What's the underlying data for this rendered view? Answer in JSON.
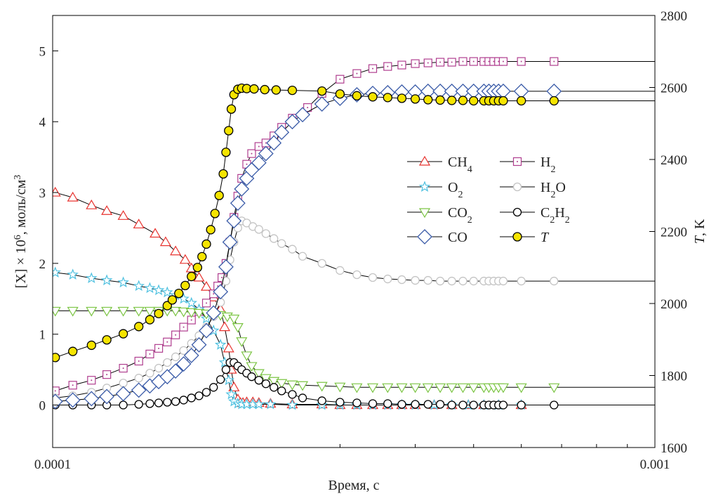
{
  "chart_data": {
    "type": "line",
    "title": "",
    "xlabel": "Время, с",
    "ylabel_left": "[X] × 10⁶, моль/см³",
    "ylabel_right": "T, K",
    "x_scale": "log",
    "xlim": [
      0.0001,
      0.001
    ],
    "x_ticks": [
      0.0001,
      0.001
    ],
    "x_tick_labels": [
      "0.0001",
      "0.001"
    ],
    "ylim_left": [
      -0.6,
      5.5
    ],
    "y_ticks_left": [
      0,
      1,
      2,
      3,
      4,
      5
    ],
    "ylim_right": [
      1600,
      2800
    ],
    "y_ticks_right": [
      1600,
      1800,
      2000,
      2200,
      2400,
      2600,
      2800
    ],
    "grid": false,
    "legend_position": "center-right",
    "series": [
      {
        "name": "CH4",
        "axis": "left",
        "color": "#e8332f",
        "marker": "triangle",
        "x": [
          0.000101,
          0.000108,
          0.000116,
          0.000123,
          0.000131,
          0.000139,
          0.000148,
          0.000154,
          0.00016,
          0.000166,
          0.00017,
          0.000175,
          0.00018,
          0.000185,
          0.00019,
          0.000193,
          0.000196,
          0.000198,
          0.0002,
          0.000203,
          0.000205,
          0.000207,
          0.00021,
          0.000215,
          0.00022,
          0.00023,
          0.00025,
          0.00028,
          0.0003,
          0.00032,
          0.00034,
          0.00036,
          0.00038,
          0.0004,
          0.00043,
          0.00046,
          0.00049,
          0.00052,
          0.00055,
          0.0006
        ],
        "y": [
          3.0,
          2.93,
          2.82,
          2.74,
          2.67,
          2.55,
          2.42,
          2.3,
          2.17,
          2.05,
          1.93,
          1.8,
          1.67,
          1.52,
          1.35,
          1.1,
          0.8,
          0.5,
          0.25,
          0.08,
          0.03,
          0.03,
          0.04,
          0.04,
          0.03,
          0.02,
          0.01,
          0.01,
          0.0,
          0.0,
          0.0,
          0.0,
          0.0,
          0.0,
          0.0,
          0.0,
          0.0,
          0.0,
          0.0,
          0.0
        ]
      },
      {
        "name": "H2",
        "axis": "left",
        "color": "#b03e8f",
        "marker": "square-dot",
        "x": [
          0.000101,
          0.000108,
          0.000116,
          0.000123,
          0.000131,
          0.000139,
          0.000145,
          0.00015,
          0.000155,
          0.00016,
          0.000165,
          0.00017,
          0.000175,
          0.00018,
          0.000185,
          0.000188,
          0.000191,
          0.000194,
          0.000197,
          0.0002,
          0.000203,
          0.000206,
          0.00021,
          0.000214,
          0.00022,
          0.000226,
          0.000233,
          0.00024,
          0.00025,
          0.000265,
          0.00028,
          0.0003,
          0.00032,
          0.00034,
          0.00036,
          0.00038,
          0.0004,
          0.00042,
          0.00044,
          0.00046,
          0.00048,
          0.0005,
          0.00052,
          0.00053,
          0.00054,
          0.00055,
          0.00056,
          0.0006,
          0.00068
        ],
        "y": [
          0.2,
          0.28,
          0.35,
          0.43,
          0.52,
          0.62,
          0.72,
          0.8,
          0.89,
          0.99,
          1.1,
          1.2,
          1.32,
          1.44,
          1.57,
          1.68,
          1.8,
          2.0,
          2.3,
          2.65,
          2.95,
          3.2,
          3.4,
          3.55,
          3.65,
          3.7,
          3.8,
          3.92,
          4.05,
          4.2,
          4.4,
          4.6,
          4.68,
          4.75,
          4.78,
          4.8,
          4.82,
          4.83,
          4.84,
          4.84,
          4.85,
          4.85,
          4.85,
          4.85,
          4.85,
          4.85,
          4.85,
          4.85,
          4.85
        ]
      },
      {
        "name": "O2",
        "axis": "left",
        "color": "#4fc1e0",
        "marker": "star",
        "x": [
          0.000101,
          0.000108,
          0.000116,
          0.000123,
          0.000131,
          0.000139,
          0.000145,
          0.00015,
          0.000155,
          0.00016,
          0.000165,
          0.00017,
          0.000175,
          0.00018,
          0.000185,
          0.00019,
          0.000193,
          0.000196,
          0.000198,
          0.0002,
          0.000203,
          0.000206,
          0.00021,
          0.000215,
          0.00022,
          0.00023,
          0.00025,
          0.00028,
          0.0003,
          0.00032,
          0.00034,
          0.00036,
          0.00038,
          0.0004,
          0.00043,
          0.00046,
          0.00049,
          0.00052,
          0.00055,
          0.0006
        ],
        "y": [
          1.87,
          1.84,
          1.79,
          1.76,
          1.73,
          1.68,
          1.65,
          1.62,
          1.59,
          1.55,
          1.5,
          1.44,
          1.35,
          1.22,
          1.05,
          0.85,
          0.6,
          0.35,
          0.15,
          0.05,
          0.02,
          0.01,
          0.01,
          0.01,
          0.01,
          0.01,
          0.0,
          0.0,
          0.0,
          0.0,
          0.0,
          0.0,
          0.0,
          0.0,
          0.0,
          0.0,
          0.0,
          0.0,
          0.0,
          0.0
        ]
      },
      {
        "name": "H2O",
        "axis": "left",
        "color": "#c4c4c4",
        "marker": "circle-open",
        "x": [
          0.000101,
          0.000108,
          0.000116,
          0.000123,
          0.000131,
          0.000139,
          0.000145,
          0.00015,
          0.000155,
          0.00016,
          0.000165,
          0.00017,
          0.000175,
          0.00018,
          0.000185,
          0.00019,
          0.000194,
          0.000197,
          0.0002,
          0.000203,
          0.000206,
          0.00021,
          0.000215,
          0.00022,
          0.000226,
          0.000233,
          0.00024,
          0.00025,
          0.00026,
          0.00028,
          0.0003,
          0.00032,
          0.00034,
          0.00036,
          0.00038,
          0.0004,
          0.00042,
          0.00044,
          0.00046,
          0.00048,
          0.0005,
          0.00052,
          0.00053,
          0.00054,
          0.00055,
          0.00056,
          0.0006,
          0.00068
        ],
        "y": [
          0.1,
          0.13,
          0.18,
          0.24,
          0.31,
          0.38,
          0.45,
          0.52,
          0.6,
          0.68,
          0.77,
          0.87,
          0.98,
          1.1,
          1.25,
          1.45,
          1.75,
          2.05,
          2.3,
          2.5,
          2.6,
          2.57,
          2.52,
          2.48,
          2.42,
          2.35,
          2.28,
          2.2,
          2.1,
          2.0,
          1.9,
          1.84,
          1.8,
          1.78,
          1.77,
          1.76,
          1.76,
          1.75,
          1.75,
          1.75,
          1.75,
          1.75,
          1.75,
          1.75,
          1.75,
          1.75,
          1.75,
          1.75
        ]
      },
      {
        "name": "CO2",
        "axis": "left",
        "color": "#7cc544",
        "marker": "triangle-down",
        "x": [
          0.000101,
          0.000108,
          0.000116,
          0.000123,
          0.000131,
          0.000139,
          0.000145,
          0.00015,
          0.000155,
          0.00016,
          0.000165,
          0.00017,
          0.000175,
          0.00018,
          0.000185,
          0.00019,
          0.000195,
          0.0002,
          0.000203,
          0.000206,
          0.00021,
          0.000214,
          0.00022,
          0.000226,
          0.000233,
          0.00024,
          0.00025,
          0.00026,
          0.00028,
          0.0003,
          0.00032,
          0.00034,
          0.00036,
          0.00038,
          0.0004,
          0.00042,
          0.00044,
          0.00046,
          0.00048,
          0.0005,
          0.00052,
          0.00053,
          0.00054,
          0.00055,
          0.00056,
          0.0006,
          0.00068
        ],
        "y": [
          1.33,
          1.33,
          1.33,
          1.33,
          1.33,
          1.33,
          1.33,
          1.33,
          1.33,
          1.33,
          1.32,
          1.31,
          1.3,
          1.29,
          1.28,
          1.27,
          1.25,
          1.22,
          1.1,
          0.9,
          0.7,
          0.55,
          0.45,
          0.38,
          0.34,
          0.31,
          0.29,
          0.28,
          0.27,
          0.26,
          0.25,
          0.25,
          0.25,
          0.25,
          0.25,
          0.25,
          0.25,
          0.25,
          0.25,
          0.25,
          0.25,
          0.25,
          0.25,
          0.25,
          0.25,
          0.25,
          0.25
        ]
      },
      {
        "name": "C2H2",
        "axis": "left",
        "color": "#000000",
        "marker": "circle-open",
        "x": [
          0.000101,
          0.000108,
          0.000116,
          0.000123,
          0.000131,
          0.000139,
          0.000145,
          0.00015,
          0.000155,
          0.00016,
          0.000165,
          0.00017,
          0.000175,
          0.00018,
          0.000185,
          0.00019,
          0.000194,
          0.000197,
          0.0002,
          0.000203,
          0.000206,
          0.00021,
          0.000214,
          0.00022,
          0.000226,
          0.000233,
          0.00024,
          0.00025,
          0.00026,
          0.00028,
          0.0003,
          0.00032,
          0.00034,
          0.00036,
          0.00038,
          0.0004,
          0.00042,
          0.00044,
          0.00046,
          0.00048,
          0.0005,
          0.00052,
          0.00053,
          0.00054,
          0.00055,
          0.00056,
          0.0006,
          0.00068
        ],
        "y": [
          0.0,
          0.0,
          0.0,
          0.0,
          0.0,
          0.01,
          0.02,
          0.03,
          0.04,
          0.05,
          0.07,
          0.1,
          0.13,
          0.18,
          0.25,
          0.36,
          0.5,
          0.6,
          0.6,
          0.55,
          0.5,
          0.45,
          0.4,
          0.35,
          0.3,
          0.25,
          0.2,
          0.15,
          0.1,
          0.06,
          0.04,
          0.03,
          0.02,
          0.02,
          0.01,
          0.01,
          0.01,
          0.01,
          0.0,
          0.0,
          0.0,
          0.0,
          0.0,
          0.0,
          0.0,
          0.0,
          0.0,
          0.0
        ]
      },
      {
        "name": "CO",
        "axis": "left",
        "color": "#3a5ba8",
        "marker": "diamond",
        "x": [
          0.000101,
          0.000108,
          0.000116,
          0.000123,
          0.000131,
          0.000139,
          0.000145,
          0.00015,
          0.000155,
          0.00016,
          0.000165,
          0.00017,
          0.000175,
          0.00018,
          0.000185,
          0.00019,
          0.000194,
          0.000197,
          0.0002,
          0.000203,
          0.000206,
          0.00021,
          0.000214,
          0.00022,
          0.000226,
          0.000233,
          0.00024,
          0.00025,
          0.00026,
          0.00028,
          0.0003,
          0.00032,
          0.00034,
          0.00036,
          0.00038,
          0.0004,
          0.00042,
          0.00044,
          0.00046,
          0.00048,
          0.0005,
          0.00052,
          0.00053,
          0.00054,
          0.00055,
          0.00056,
          0.0006,
          0.00068
        ],
        "y": [
          0.05,
          0.07,
          0.09,
          0.12,
          0.16,
          0.21,
          0.27,
          0.33,
          0.4,
          0.48,
          0.58,
          0.7,
          0.85,
          1.05,
          1.3,
          1.6,
          1.95,
          2.3,
          2.6,
          2.85,
          3.05,
          3.2,
          3.32,
          3.42,
          3.55,
          3.7,
          3.85,
          4.0,
          4.1,
          4.25,
          4.33,
          4.38,
          4.4,
          4.41,
          4.42,
          4.42,
          4.43,
          4.43,
          4.43,
          4.43,
          4.43,
          4.43,
          4.43,
          4.43,
          4.43,
          4.43,
          4.43,
          4.43
        ]
      },
      {
        "name": "T",
        "axis": "right",
        "color": "#f5e400",
        "marker": "circle-filled",
        "x": [
          0.000101,
          0.000108,
          0.000116,
          0.000123,
          0.000131,
          0.000139,
          0.000145,
          0.00015,
          0.000155,
          0.000158,
          0.000162,
          0.000166,
          0.00017,
          0.000174,
          0.000177,
          0.00018,
          0.000183,
          0.000186,
          0.000189,
          0.000192,
          0.000194,
          0.000196,
          0.000198,
          0.0002,
          0.000203,
          0.000206,
          0.00021,
          0.000216,
          0.000225,
          0.000235,
          0.00025,
          0.00028,
          0.0003,
          0.00032,
          0.00034,
          0.00036,
          0.00038,
          0.0004,
          0.00042,
          0.00044,
          0.00046,
          0.00048,
          0.0005,
          0.00052,
          0.00053,
          0.00054,
          0.00055,
          0.00056,
          0.0006,
          0.00068
        ],
        "y": [
          1850,
          1867,
          1884,
          1899,
          1916,
          1936,
          1955,
          1972,
          1994,
          2010,
          2028,
          2050,
          2075,
          2100,
          2130,
          2165,
          2205,
          2250,
          2300,
          2360,
          2420,
          2480,
          2540,
          2580,
          2595,
          2598,
          2597,
          2596,
          2594,
          2593,
          2592,
          2590,
          2582,
          2577,
          2574,
          2572,
          2570,
          2568,
          2566,
          2565,
          2564,
          2564,
          2563,
          2563,
          2563,
          2563,
          2563,
          2563,
          2563,
          2563
        ]
      }
    ],
    "legend_labels": {
      "CH4": [
        "CH",
        "4"
      ],
      "H2": [
        "H",
        "2"
      ],
      "O2": [
        "O",
        "2"
      ],
      "H2O": [
        "H",
        "2",
        "O"
      ],
      "CO2": [
        "CO",
        "2"
      ],
      "C2H2": [
        "C",
        "2",
        "H",
        "2"
      ],
      "CO": [
        "CO"
      ],
      "T": [
        "T"
      ]
    }
  }
}
